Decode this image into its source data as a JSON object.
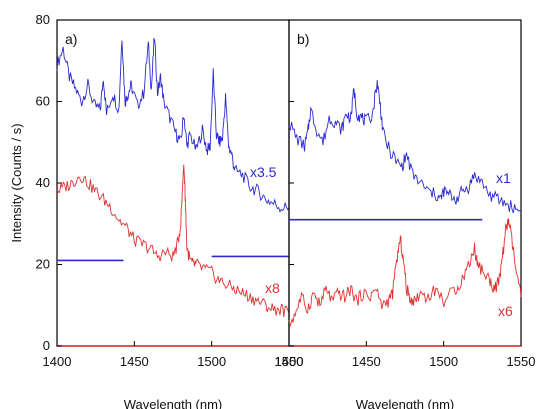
{
  "chart_data": [
    {
      "panel": "a)",
      "type": "line",
      "xlabel": "Wavelength (nm)",
      "ylabel": "Intensity (Counts / s)",
      "xlim": [
        1400,
        1550
      ],
      "ylim": [
        0,
        80
      ],
      "xticks": [
        1400,
        1450,
        1500,
        1550
      ],
      "yticks": [
        0,
        20,
        40,
        60,
        80
      ],
      "annotations": [
        {
          "text": "x3.5",
          "color": "#2a2ad0"
        },
        {
          "text": "x8",
          "color": "#e03030"
        }
      ],
      "series": [
        {
          "color": "#2a2ad0",
          "x": [
            1400,
            1404,
            1408,
            1412,
            1416,
            1420,
            1424,
            1428,
            1430,
            1432,
            1436,
            1440,
            1442,
            1444,
            1446,
            1448,
            1452,
            1456,
            1459,
            1461,
            1463,
            1465,
            1467,
            1469,
            1473,
            1477,
            1480,
            1482,
            1484,
            1486,
            1490,
            1494,
            1497,
            1499,
            1501,
            1503,
            1505,
            1507,
            1509,
            1511,
            1513,
            1515,
            1520,
            1525,
            1530,
            1535,
            1540,
            1545,
            1550
          ],
          "y": [
            69,
            73,
            66,
            63,
            60,
            64,
            59,
            58,
            66,
            57,
            62,
            58,
            76,
            60,
            62,
            64,
            59,
            62,
            74,
            63,
            76,
            62,
            66,
            60,
            56,
            52,
            50,
            57,
            49,
            52,
            48,
            53,
            48,
            49,
            67,
            52,
            50,
            51,
            61,
            49,
            47,
            43,
            42,
            39,
            38,
            36,
            35,
            34,
            34
          ]
        },
        {
          "color": "#2a2ad0",
          "x": [
            1400,
            1443
          ],
          "y": [
            21,
            21
          ]
        },
        {
          "color": "#2a2ad0",
          "x": [
            1500,
            1550
          ],
          "y": [
            22,
            22
          ]
        },
        {
          "color": "#e03030",
          "x": [
            1400,
            1405,
            1410,
            1415,
            1420,
            1425,
            1430,
            1435,
            1440,
            1445,
            1450,
            1455,
            1460,
            1465,
            1470,
            1475,
            1478,
            1480,
            1482,
            1483,
            1484,
            1486,
            1488,
            1490,
            1495,
            1500,
            1505,
            1510,
            1515,
            1520,
            1525,
            1530,
            1535,
            1540,
            1545,
            1550
          ],
          "y": [
            38,
            39,
            40,
            42,
            40,
            38,
            36,
            34,
            31,
            29,
            26,
            25,
            24,
            22,
            23,
            22,
            25,
            30,
            45,
            36,
            24,
            21,
            20,
            20,
            19,
            18,
            16,
            15,
            14,
            13,
            12,
            11,
            10,
            9,
            9,
            8
          ]
        },
        {
          "color": "#e03030",
          "x": [
            1400,
            1550
          ],
          "y": [
            0,
            0
          ]
        }
      ]
    },
    {
      "panel": "b)",
      "type": "line",
      "xlabel": "Wavelength (nm)",
      "xlim": [
        1400,
        1550
      ],
      "ylim": [
        0,
        80
      ],
      "xticks": [
        1400,
        1450,
        1500,
        1550
      ],
      "annotations": [
        {
          "text": "x1",
          "color": "#2a2ad0"
        },
        {
          "text": "x6",
          "color": "#e03030"
        }
      ],
      "series": [
        {
          "color": "#2a2ad0",
          "x": [
            1400,
            1405,
            1410,
            1412,
            1414,
            1418,
            1422,
            1426,
            1430,
            1434,
            1437,
            1440,
            1442,
            1444,
            1447,
            1450,
            1454,
            1457,
            1459,
            1461,
            1465,
            1470,
            1473,
            1476,
            1480,
            1485,
            1490,
            1495,
            1498,
            1500,
            1504,
            1508,
            1512,
            1516,
            1520,
            1525,
            1530,
            1535,
            1540,
            1545,
            1550
          ],
          "y": [
            55,
            51,
            49,
            52,
            58,
            53,
            50,
            56,
            55,
            53,
            57,
            56,
            63,
            57,
            56,
            55,
            57,
            65,
            59,
            52,
            48,
            45,
            44,
            47,
            42,
            40,
            38,
            37,
            36,
            38,
            37,
            36,
            38,
            39,
            42,
            40,
            37,
            36,
            35,
            34,
            33
          ]
        },
        {
          "color": "#2a2ad0",
          "x": [
            1400,
            1525
          ],
          "y": [
            31,
            31
          ]
        },
        {
          "color": "#e03030",
          "x": [
            1400,
            1404,
            1408,
            1412,
            1416,
            1420,
            1424,
            1428,
            1432,
            1436,
            1440,
            1444,
            1448,
            1452,
            1456,
            1460,
            1464,
            1467,
            1470,
            1472,
            1474,
            1476,
            1478,
            1481,
            1485,
            1490,
            1495,
            1500,
            1505,
            1510,
            1514,
            1518,
            1520,
            1522,
            1526,
            1530,
            1533,
            1536,
            1538,
            1540,
            1542,
            1544,
            1547,
            1550
          ],
          "y": [
            5,
            8,
            12,
            9,
            13,
            10,
            14,
            11,
            13,
            12,
            14,
            11,
            13,
            12,
            14,
            10,
            11,
            13,
            22,
            26,
            21,
            14,
            12,
            11,
            13,
            12,
            14,
            11,
            13,
            15,
            18,
            22,
            24,
            20,
            18,
            16,
            14,
            16,
            22,
            28,
            31,
            26,
            18,
            12
          ]
        },
        {
          "color": "#e03030",
          "x": [
            1400,
            1550
          ],
          "y": [
            0,
            0
          ]
        }
      ]
    }
  ]
}
